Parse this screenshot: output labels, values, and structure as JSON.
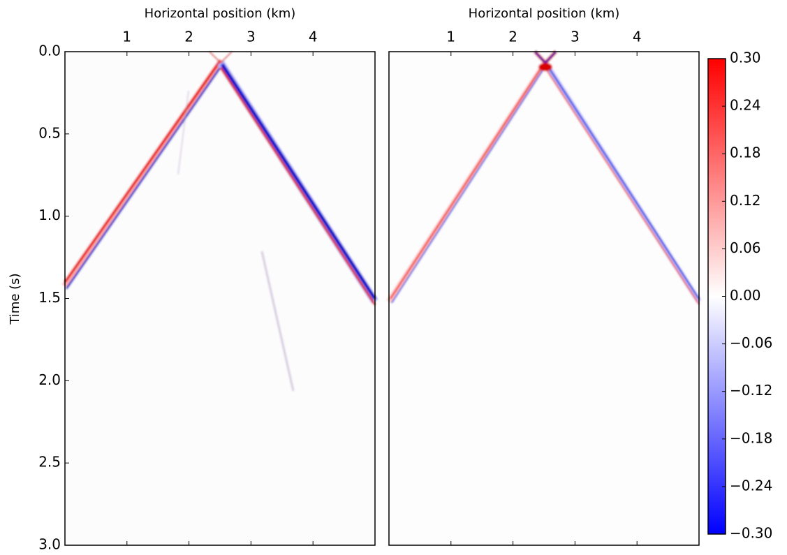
{
  "chart_data": [
    {
      "type": "heatmap",
      "xlabel": "Horizontal position (km)",
      "ylabel": "Time (s)",
      "xlim": [
        0,
        5
      ],
      "xticks": [
        1,
        2,
        3,
        4
      ],
      "ylim": [
        0,
        3
      ],
      "inverted_y": true,
      "yticks": [
        {
          "value": 0,
          "label": "0.0"
        },
        0.5,
        {
          "value": 1,
          "label": "1.0"
        },
        1.5,
        {
          "value": 2,
          "label": "2.0"
        },
        2.5,
        {
          "value": 3,
          "label": "3.0"
        }
      ]
    },
    {
      "type": "heatmap",
      "xlabel": "Horizontal position (km)",
      "xlim": [
        0,
        5
      ],
      "xticks": [
        1,
        2,
        3,
        4
      ],
      "ylim": [
        0,
        3
      ],
      "inverted_y": true,
      "colorbar": {
        "lim": [
          -0.3,
          0.3
        ],
        "colors": [
          "#0000ff",
          "#ffffff",
          "#ff0000"
        ],
        "ticks": [
          {
            "value": 0.3,
            "label": "0.30"
          },
          {
            "value": 0.24,
            "label": "0.24"
          },
          {
            "value": 0.18,
            "label": "0.18"
          },
          {
            "value": 0.12,
            "label": "0.12"
          },
          {
            "value": 0.06,
            "label": "0.06"
          },
          {
            "value": 0,
            "label": "0.00"
          },
          {
            "value": -0.06,
            "label": "−0.06"
          },
          {
            "value": -0.12,
            "label": "−0.12"
          },
          {
            "value": -0.18,
            "label": "−0.18"
          },
          {
            "value": -0.24,
            "label": "−0.24"
          },
          {
            "value": -0.3,
            "label": "−0.30"
          }
        ]
      }
    }
  ]
}
